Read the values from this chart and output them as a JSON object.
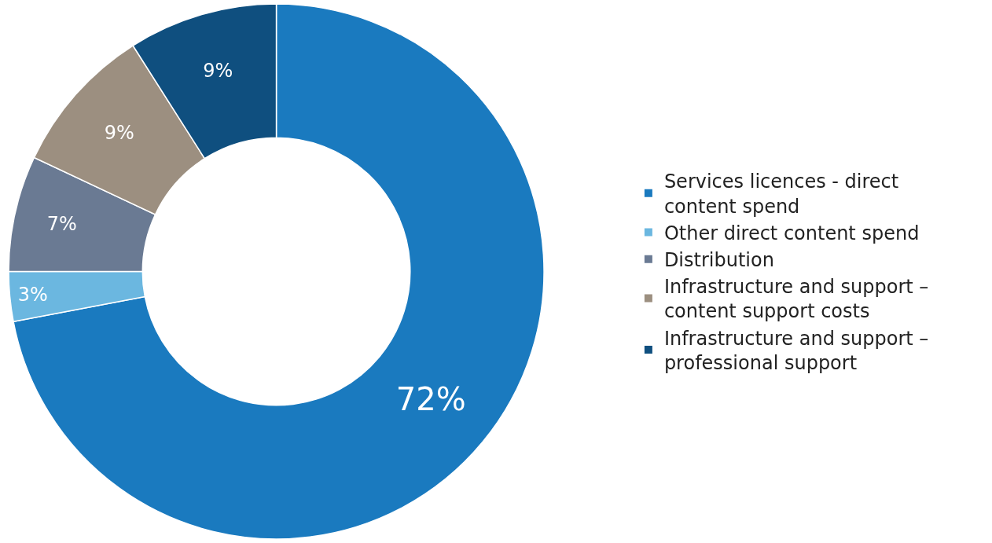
{
  "chart_data": {
    "type": "donut",
    "categories": [
      "Services licences - direct content spend",
      "Other direct content spend",
      "Distribution",
      "Infrastructure and support – content support costs",
      "Infrastructure and support – professional support"
    ],
    "values": [
      72,
      3,
      7,
      9,
      9
    ],
    "colors": [
      "#1a7abf",
      "#6bb7e0",
      "#6a7a93",
      "#9c8f80",
      "#0f4f7f"
    ],
    "value_labels": [
      "72%",
      "3%",
      "7%",
      "9%",
      "9%"
    ],
    "legend": "right"
  }
}
